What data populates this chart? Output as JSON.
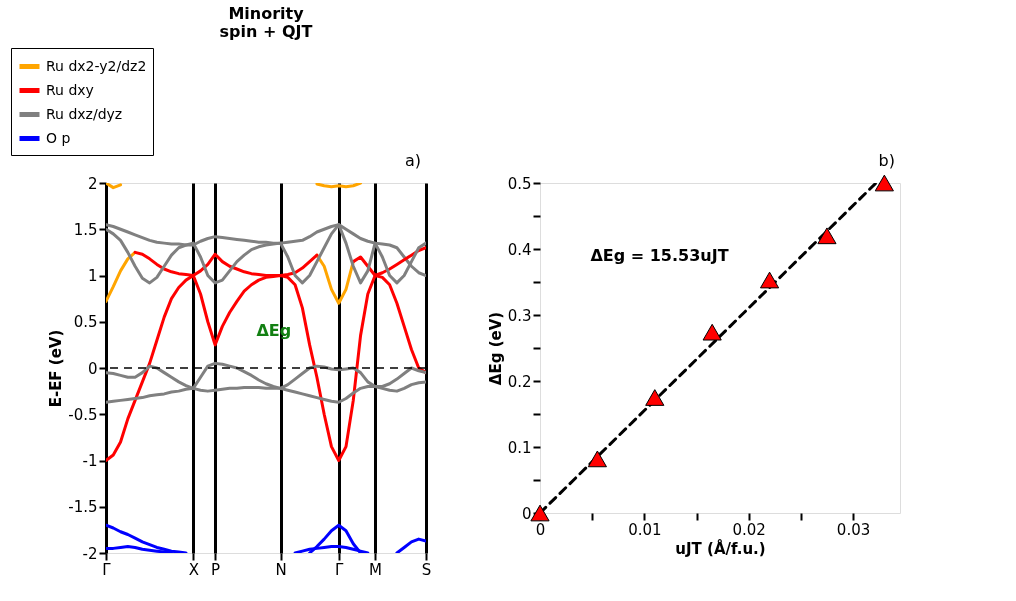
{
  "chart_data": [
    {
      "type": "line",
      "title": "Minority spin + QJT",
      "ylabel": "E-EF (eV)",
      "legend": "top left",
      "grid": "x",
      "categories": [
        "Γ",
        null,
        null,
        null,
        null,
        null,
        null,
        null,
        null,
        null,
        null,
        null,
        "X",
        null,
        null,
        "P",
        null,
        null,
        null,
        null,
        null,
        null,
        null,
        null,
        "N",
        null,
        null,
        null,
        null,
        null,
        null,
        null,
        "Γ",
        null,
        null,
        null,
        null,
        "M",
        null,
        null,
        null,
        null,
        null,
        null,
        "S"
      ],
      "ylim": [
        -2,
        2
      ],
      "yticks": [
        -2,
        -1.5,
        -1,
        -0.5,
        0,
        0.5,
        1,
        1.5,
        2
      ],
      "ref_lines": [
        {
          "axis": "y",
          "value": 0,
          "color": "#000000",
          "line_style": "dashed"
        }
      ],
      "annotations": [
        "a)",
        "ΔEg"
      ],
      "series": [
        {
          "name": "Ru dx2-y2/dz2",
          "color": "#ffa500",
          "values": [
            0.72,
            0.88,
            1.05,
            1.18,
            1.25,
            null,
            null,
            null,
            null,
            null,
            null,
            null,
            null,
            null,
            null,
            null,
            null,
            null,
            null,
            null,
            null,
            null,
            null,
            null,
            null,
            null,
            null,
            null,
            null,
            null,
            null,
            null,
            null,
            null,
            null,
            null,
            null,
            null,
            null,
            null,
            null,
            null,
            null,
            null,
            null
          ]
        },
        {
          "name": "Ru dxy",
          "color": "#ff0000",
          "values": [
            -1,
            -0.94,
            -0.8,
            -0.55,
            -0.35,
            -0.15,
            0.05,
            0.3,
            0.55,
            0.75,
            0.87,
            0.95,
            1.0,
            0.8,
            0.5,
            0.25,
            0.45,
            0.6,
            0.72,
            0.83,
            0.9,
            0.95,
            0.98,
            0.99,
            1.0,
            0.98,
            0.9,
            0.65,
            0.25,
            -0.1,
            -0.5,
            -0.85,
            -1.0,
            -0.85,
            -0.35,
            0.35,
            0.8,
            1.0,
            0.98,
            0.9,
            0.7,
            0.45,
            0.2,
            0.0,
            -0.05
          ]
        },
        {
          "name": "Ru dxz/dyz",
          "color": "#808080",
          "values": [
            1.55,
            1.53,
            1.5,
            1.47,
            1.44,
            1.41,
            1.38,
            1.36,
            1.35,
            1.34,
            1.34,
            1.33,
            1.33,
            1.37,
            1.4,
            1.42,
            1.41,
            1.4,
            1.39,
            1.38,
            1.37,
            1.36,
            1.36,
            1.35,
            1.35,
            1.36,
            1.37,
            1.38,
            1.42,
            1.47,
            1.5,
            1.53,
            1.55,
            1.5,
            1.45,
            1.4,
            1.37,
            1.35,
            1.34,
            1.33,
            1.3,
            1.2,
            1.1,
            1.03,
            1.0
          ]
        },
        {
          "name": "O p",
          "color": "#0000ff",
          "values": [
            -1.7,
            -1.73,
            -1.77,
            -1.8,
            -1.84,
            -1.88,
            -1.91,
            -1.94,
            -1.96,
            -1.98,
            -1.99,
            -2.0,
            null,
            null,
            null,
            null,
            null,
            null,
            null,
            null,
            null,
            null,
            null,
            null,
            null,
            null,
            null,
            null,
            null,
            null,
            null,
            null,
            null,
            null,
            null,
            null,
            null,
            null,
            null,
            null,
            null,
            null,
            null,
            null,
            null
          ]
        },
        {
          "color": "#ffa500",
          "values": [
            null,
            null,
            null,
            null,
            null,
            null,
            null,
            null,
            null,
            null,
            null,
            null,
            null,
            null,
            null,
            null,
            null,
            null,
            null,
            null,
            null,
            null,
            null,
            null,
            null,
            null,
            null,
            null,
            null,
            1.22,
            1.1,
            0.85,
            0.7,
            0.85,
            1.15,
            null,
            null,
            null,
            null,
            null,
            null,
            null,
            null,
            null,
            null
          ]
        },
        {
          "color": "#ffa500",
          "values": [
            2.0,
            1.95,
            1.98,
            null,
            null,
            null,
            null,
            null,
            null,
            null,
            null,
            null,
            null,
            null,
            null,
            null,
            null,
            null,
            null,
            null,
            null,
            null,
            null,
            null,
            null,
            null,
            null,
            null,
            null,
            null,
            null,
            null,
            null,
            null,
            null,
            null,
            null,
            null,
            null,
            null,
            null,
            null,
            null,
            null,
            null
          ]
        },
        {
          "color": "#ffa500",
          "values": [
            null,
            null,
            null,
            null,
            null,
            null,
            null,
            null,
            null,
            null,
            null,
            null,
            null,
            null,
            null,
            null,
            null,
            null,
            null,
            null,
            null,
            null,
            null,
            null,
            null,
            null,
            null,
            null,
            null,
            1.99,
            1.97,
            1.96,
            1.97,
            1.96,
            1.97,
            2.0,
            null,
            null,
            null,
            null,
            null,
            null,
            null,
            null,
            null
          ]
        },
        {
          "color": "#ff0000",
          "values": [
            null,
            null,
            null,
            null,
            1.25,
            1.23,
            1.18,
            1.12,
            1.07,
            1.04,
            1.02,
            1.01,
            1.0,
            1.05,
            1.12,
            1.23,
            1.15,
            1.1,
            1.07,
            1.04,
            1.02,
            1.01,
            1.0,
            1.0,
            1.0,
            1.01,
            1.03,
            1.08,
            1.15,
            1.22,
            null,
            null,
            null,
            null,
            null,
            null,
            null,
            null,
            null,
            null,
            null,
            null,
            null,
            null,
            null
          ]
        },
        {
          "color": "#ff0000",
          "values": [
            null,
            null,
            null,
            null,
            null,
            null,
            null,
            null,
            null,
            null,
            null,
            null,
            null,
            null,
            null,
            null,
            null,
            null,
            null,
            null,
            null,
            null,
            null,
            null,
            null,
            null,
            null,
            null,
            null,
            null,
            null,
            null,
            null,
            null,
            1.15,
            1.2,
            1.1,
            1.0,
            1.03,
            1.07,
            1.12,
            1.17,
            1.22,
            1.27,
            1.3
          ]
        },
        {
          "color": "#808080",
          "values": [
            1.5,
            1.45,
            1.38,
            1.25,
            1.1,
            0.97,
            0.92,
            0.98,
            1.1,
            1.22,
            1.3,
            1.33,
            1.35,
            1.2,
            1.0,
            0.92,
            0.95,
            1.05,
            1.15,
            1.22,
            1.28,
            1.31,
            1.33,
            1.34,
            1.35,
            1.2,
            1.0,
            0.92,
            1.0,
            1.15,
            1.3,
            1.45,
            1.55,
            1.35,
            1.1,
            0.92,
            1.05,
            1.35,
            1.2,
            1.0,
            0.92,
            1.0,
            1.15,
            1.3,
            1.35
          ]
        },
        {
          "color": "#808080",
          "values": [
            -0.05,
            -0.06,
            -0.08,
            -0.1,
            -0.1,
            -0.05,
            0.02,
            0.0,
            -0.05,
            -0.1,
            -0.15,
            -0.19,
            -0.22,
            -0.1,
            0.02,
            0.05,
            0.04,
            0.02,
            0.0,
            -0.04,
            -0.08,
            -0.13,
            -0.17,
            -0.2,
            -0.22,
            -0.18,
            -0.12,
            -0.06,
            0.0,
            0.02,
            0.01,
            -0.01,
            -0.02,
            -0.01,
            0.0,
            -0.05,
            -0.15,
            -0.2,
            -0.2,
            -0.17,
            -0.12,
            -0.06,
            0.0,
            -0.03,
            -0.05
          ]
        },
        {
          "color": "#808080",
          "values": [
            -0.37,
            -0.36,
            -0.35,
            -0.34,
            -0.33,
            -0.32,
            -0.3,
            -0.29,
            -0.28,
            -0.26,
            -0.25,
            -0.23,
            -0.22,
            -0.24,
            -0.25,
            -0.24,
            -0.23,
            -0.22,
            -0.22,
            -0.21,
            -0.21,
            -0.21,
            -0.22,
            -0.22,
            -0.22,
            -0.24,
            -0.26,
            -0.28,
            -0.3,
            -0.32,
            -0.34,
            -0.36,
            -0.37,
            -0.33,
            -0.27,
            -0.22,
            -0.2,
            -0.2,
            -0.22,
            -0.24,
            -0.25,
            -0.22,
            -0.18,
            -0.16,
            -0.15
          ]
        },
        {
          "color": "#0000ff",
          "values": [
            -1.95,
            -1.95,
            -1.94,
            -1.93,
            -1.94,
            -1.96,
            -1.97,
            -1.98,
            -1.99,
            -2.0,
            null,
            null,
            null,
            null,
            null,
            null,
            null,
            null,
            null,
            null,
            null,
            null,
            null,
            null,
            null,
            null,
            null,
            null,
            null,
            null,
            null,
            null,
            null,
            null,
            null,
            null,
            null,
            null,
            null,
            null,
            null,
            null,
            null,
            null,
            null
          ]
        },
        {
          "color": "#0000ff",
          "values": [
            null,
            null,
            null,
            null,
            null,
            null,
            null,
            null,
            null,
            null,
            null,
            null,
            null,
            null,
            null,
            null,
            null,
            null,
            null,
            null,
            null,
            null,
            null,
            null,
            null,
            null,
            null,
            null,
            -2.0,
            -1.93,
            -1.85,
            -1.76,
            -1.7,
            -1.76,
            -1.9,
            -2.0,
            null,
            null,
            null,
            null,
            null,
            null,
            null,
            null,
            null
          ]
        },
        {
          "color": "#0000ff",
          "values": [
            null,
            null,
            null,
            null,
            null,
            null,
            null,
            null,
            null,
            null,
            null,
            null,
            null,
            null,
            null,
            null,
            null,
            null,
            null,
            null,
            null,
            null,
            null,
            null,
            null,
            null,
            -2.0,
            -1.98,
            -1.96,
            -1.95,
            -1.94,
            -1.93,
            -1.93,
            -1.94,
            -1.96,
            -1.98,
            -2.0,
            null,
            null,
            null,
            null,
            null,
            null,
            null,
            null
          ]
        },
        {
          "color": "#0000ff",
          "values": [
            null,
            null,
            null,
            null,
            null,
            null,
            null,
            null,
            null,
            null,
            null,
            null,
            null,
            null,
            null,
            null,
            null,
            null,
            null,
            null,
            null,
            null,
            null,
            null,
            null,
            null,
            null,
            null,
            null,
            null,
            null,
            null,
            null,
            null,
            null,
            null,
            null,
            null,
            null,
            null,
            -2.0,
            -1.94,
            -1.88,
            -1.85,
            -1.87
          ]
        }
      ]
    },
    {
      "type": "scatter",
      "xlabel": "uJT (Å/f.u.)",
      "ylabel": "ΔEg (eV)",
      "xlim": [
        0,
        0.0345
      ],
      "xticks": [
        0,
        {
          "value": 0.005,
          "label": null
        },
        0.01,
        {
          "value": 0.015,
          "label": null
        },
        0.02,
        {
          "value": 0.025,
          "label": null
        },
        0.03
      ],
      "ylim": [
        0,
        0.5
      ],
      "yticks": [
        0,
        {
          "value": 0.05,
          "label": null
        },
        0.1,
        {
          "value": 0.15,
          "label": null
        },
        0.2,
        {
          "value": 0.25,
          "label": null
        },
        0.3,
        {
          "value": 0.35,
          "label": null
        },
        0.4,
        {
          "value": 0.45,
          "label": null
        },
        0.5
      ],
      "annotations": [
        "b)",
        "ΔEg = 15.53uJT"
      ],
      "series": [
        {
          "type": "line",
          "color": "#000000",
          "line_style": "dashed",
          "x": [
            0,
            0.0322
          ],
          "values": [
            0,
            0.5
          ]
        },
        {
          "type": "scatter",
          "color": "#ff0000",
          "marker": "triangle",
          "x": [
            0,
            0.0055,
            0.011,
            0.0165,
            0.022,
            0.0275,
            0.033
          ],
          "values": [
            0,
            0.082,
            0.175,
            0.274,
            0.353,
            0.42,
            0.5
          ]
        }
      ]
    }
  ]
}
